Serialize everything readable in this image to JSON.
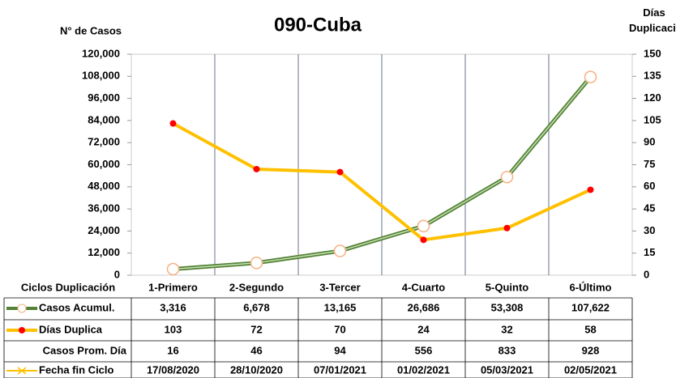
{
  "chart_data": {
    "type": "line",
    "title": "090-Cuba",
    "ylabel": "N° de Casos",
    "y2label": "Días Duplicación",
    "table_header": "Ciclos Duplicación",
    "categories": [
      "1-Primero",
      "2-Segundo",
      "3-Tercer",
      "4-Cuarto",
      "5-Quinto",
      "6-Último"
    ],
    "ylim": [
      0,
      120000
    ],
    "yticks": [
      0,
      {
        "value": 12000,
        "label": "12,000"
      },
      {
        "value": 24000,
        "label": "24,000"
      },
      {
        "value": 36000,
        "label": "36,000"
      },
      {
        "value": 48000,
        "label": "48,000"
      },
      {
        "value": 60000,
        "label": "60,000"
      },
      {
        "value": 72000,
        "label": "72,000"
      },
      {
        "value": 84000,
        "label": "84,000"
      },
      {
        "value": 96000,
        "label": "96,000"
      },
      {
        "value": 108000,
        "label": "108,000"
      },
      {
        "value": 120000,
        "label": "120,000"
      }
    ],
    "y2lim": [
      0,
      150
    ],
    "y2ticks": [
      0,
      15,
      30,
      45,
      60,
      75,
      90,
      105,
      120,
      135,
      150
    ],
    "series": [
      {
        "name": "Casos Acumul.",
        "color": "#548235",
        "values": [
          3316,
          6678,
          13165,
          26686,
          53308,
          107622
        ],
        "value_labels": [
          "3,316",
          "6,678",
          "13,165",
          "26,686",
          "53,308",
          "107,622"
        ]
      },
      {
        "name": "Días Duplica",
        "color": "#ffc000",
        "axis": "y2",
        "values": [
          103,
          72,
          70,
          24,
          32,
          58
        ]
      }
    ],
    "table_rows": [
      {
        "name": "Casos Prom. Día",
        "values": [
          16,
          46,
          94,
          556,
          833,
          928
        ]
      },
      {
        "name": "Fecha fin Ciclo",
        "color": "#ffc000",
        "values": [
          "17/08/2020",
          "28/10/2020",
          "07/01/2021",
          "01/02/2021",
          "05/03/2021",
          "02/05/2021"
        ]
      }
    ]
  }
}
